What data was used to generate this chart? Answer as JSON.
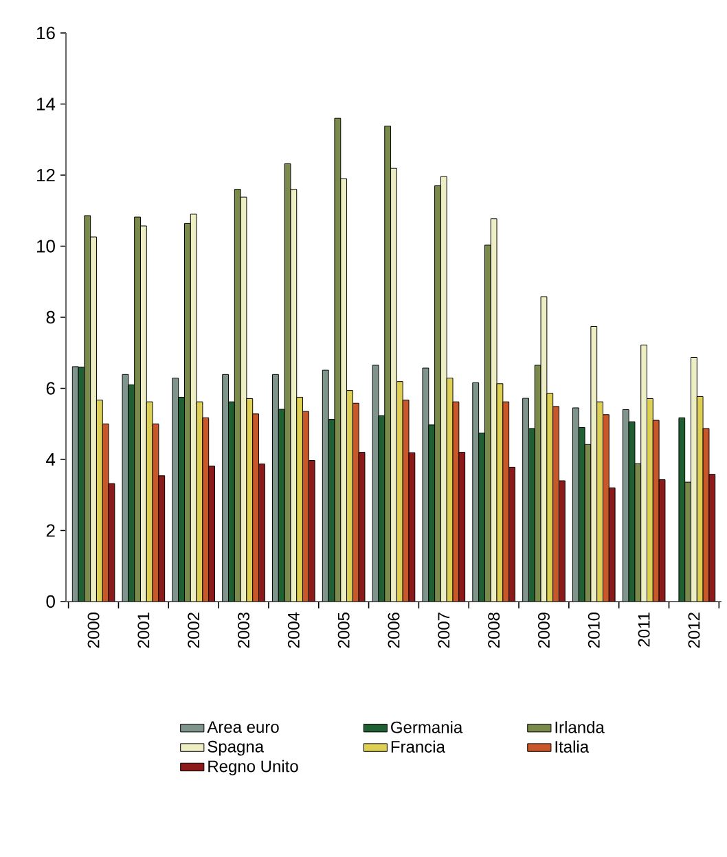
{
  "chart_data": {
    "type": "bar",
    "categories": [
      "2000",
      "2001",
      "2002",
      "2003",
      "2004",
      "2005",
      "2006",
      "2007",
      "2008",
      "2009",
      "2010",
      "2011",
      "2012"
    ],
    "series": [
      {
        "name": "Area euro",
        "color": "#7f958c",
        "values": [
          6.61,
          6.39,
          6.29,
          6.39,
          6.39,
          6.51,
          6.65,
          6.57,
          6.16,
          5.72,
          5.45,
          5.4,
          null
        ]
      },
      {
        "name": "Germania",
        "color": "#1f5f32",
        "values": [
          6.6,
          6.1,
          5.75,
          5.62,
          5.41,
          5.13,
          5.23,
          4.97,
          4.74,
          4.87,
          4.9,
          5.06,
          5.17
        ]
      },
      {
        "name": "Irlanda",
        "color": "#7a8a4a",
        "values": [
          10.86,
          10.82,
          10.64,
          11.6,
          12.32,
          13.6,
          13.38,
          11.7,
          10.03,
          6.65,
          4.42,
          3.88,
          3.36
        ]
      },
      {
        "name": "Spagna",
        "color": "#eeeec4",
        "values": [
          10.26,
          10.57,
          10.9,
          11.38,
          11.6,
          11.9,
          12.19,
          11.96,
          10.77,
          8.58,
          7.74,
          7.22,
          6.87
        ]
      },
      {
        "name": "Francia",
        "color": "#ddd055",
        "values": [
          5.67,
          5.62,
          5.62,
          5.71,
          5.75,
          5.94,
          6.19,
          6.29,
          6.13,
          5.86,
          5.62,
          5.71,
          5.77
        ]
      },
      {
        "name": "Italia",
        "color": "#c8582a",
        "values": [
          5.0,
          5.0,
          5.17,
          5.28,
          5.35,
          5.58,
          5.67,
          5.62,
          5.62,
          5.49,
          5.26,
          5.1,
          4.87
        ]
      },
      {
        "name": "Regno Unito",
        "color": "#8b1a1a",
        "values": [
          3.32,
          3.54,
          3.81,
          3.87,
          3.97,
          4.2,
          4.19,
          4.2,
          3.78,
          3.4,
          3.2,
          3.43,
          3.58
        ]
      }
    ],
    "ylim": [
      0,
      16
    ],
    "yticks": [
      0,
      2,
      4,
      6,
      8,
      10,
      12,
      14,
      16
    ],
    "legend": "bottom"
  }
}
